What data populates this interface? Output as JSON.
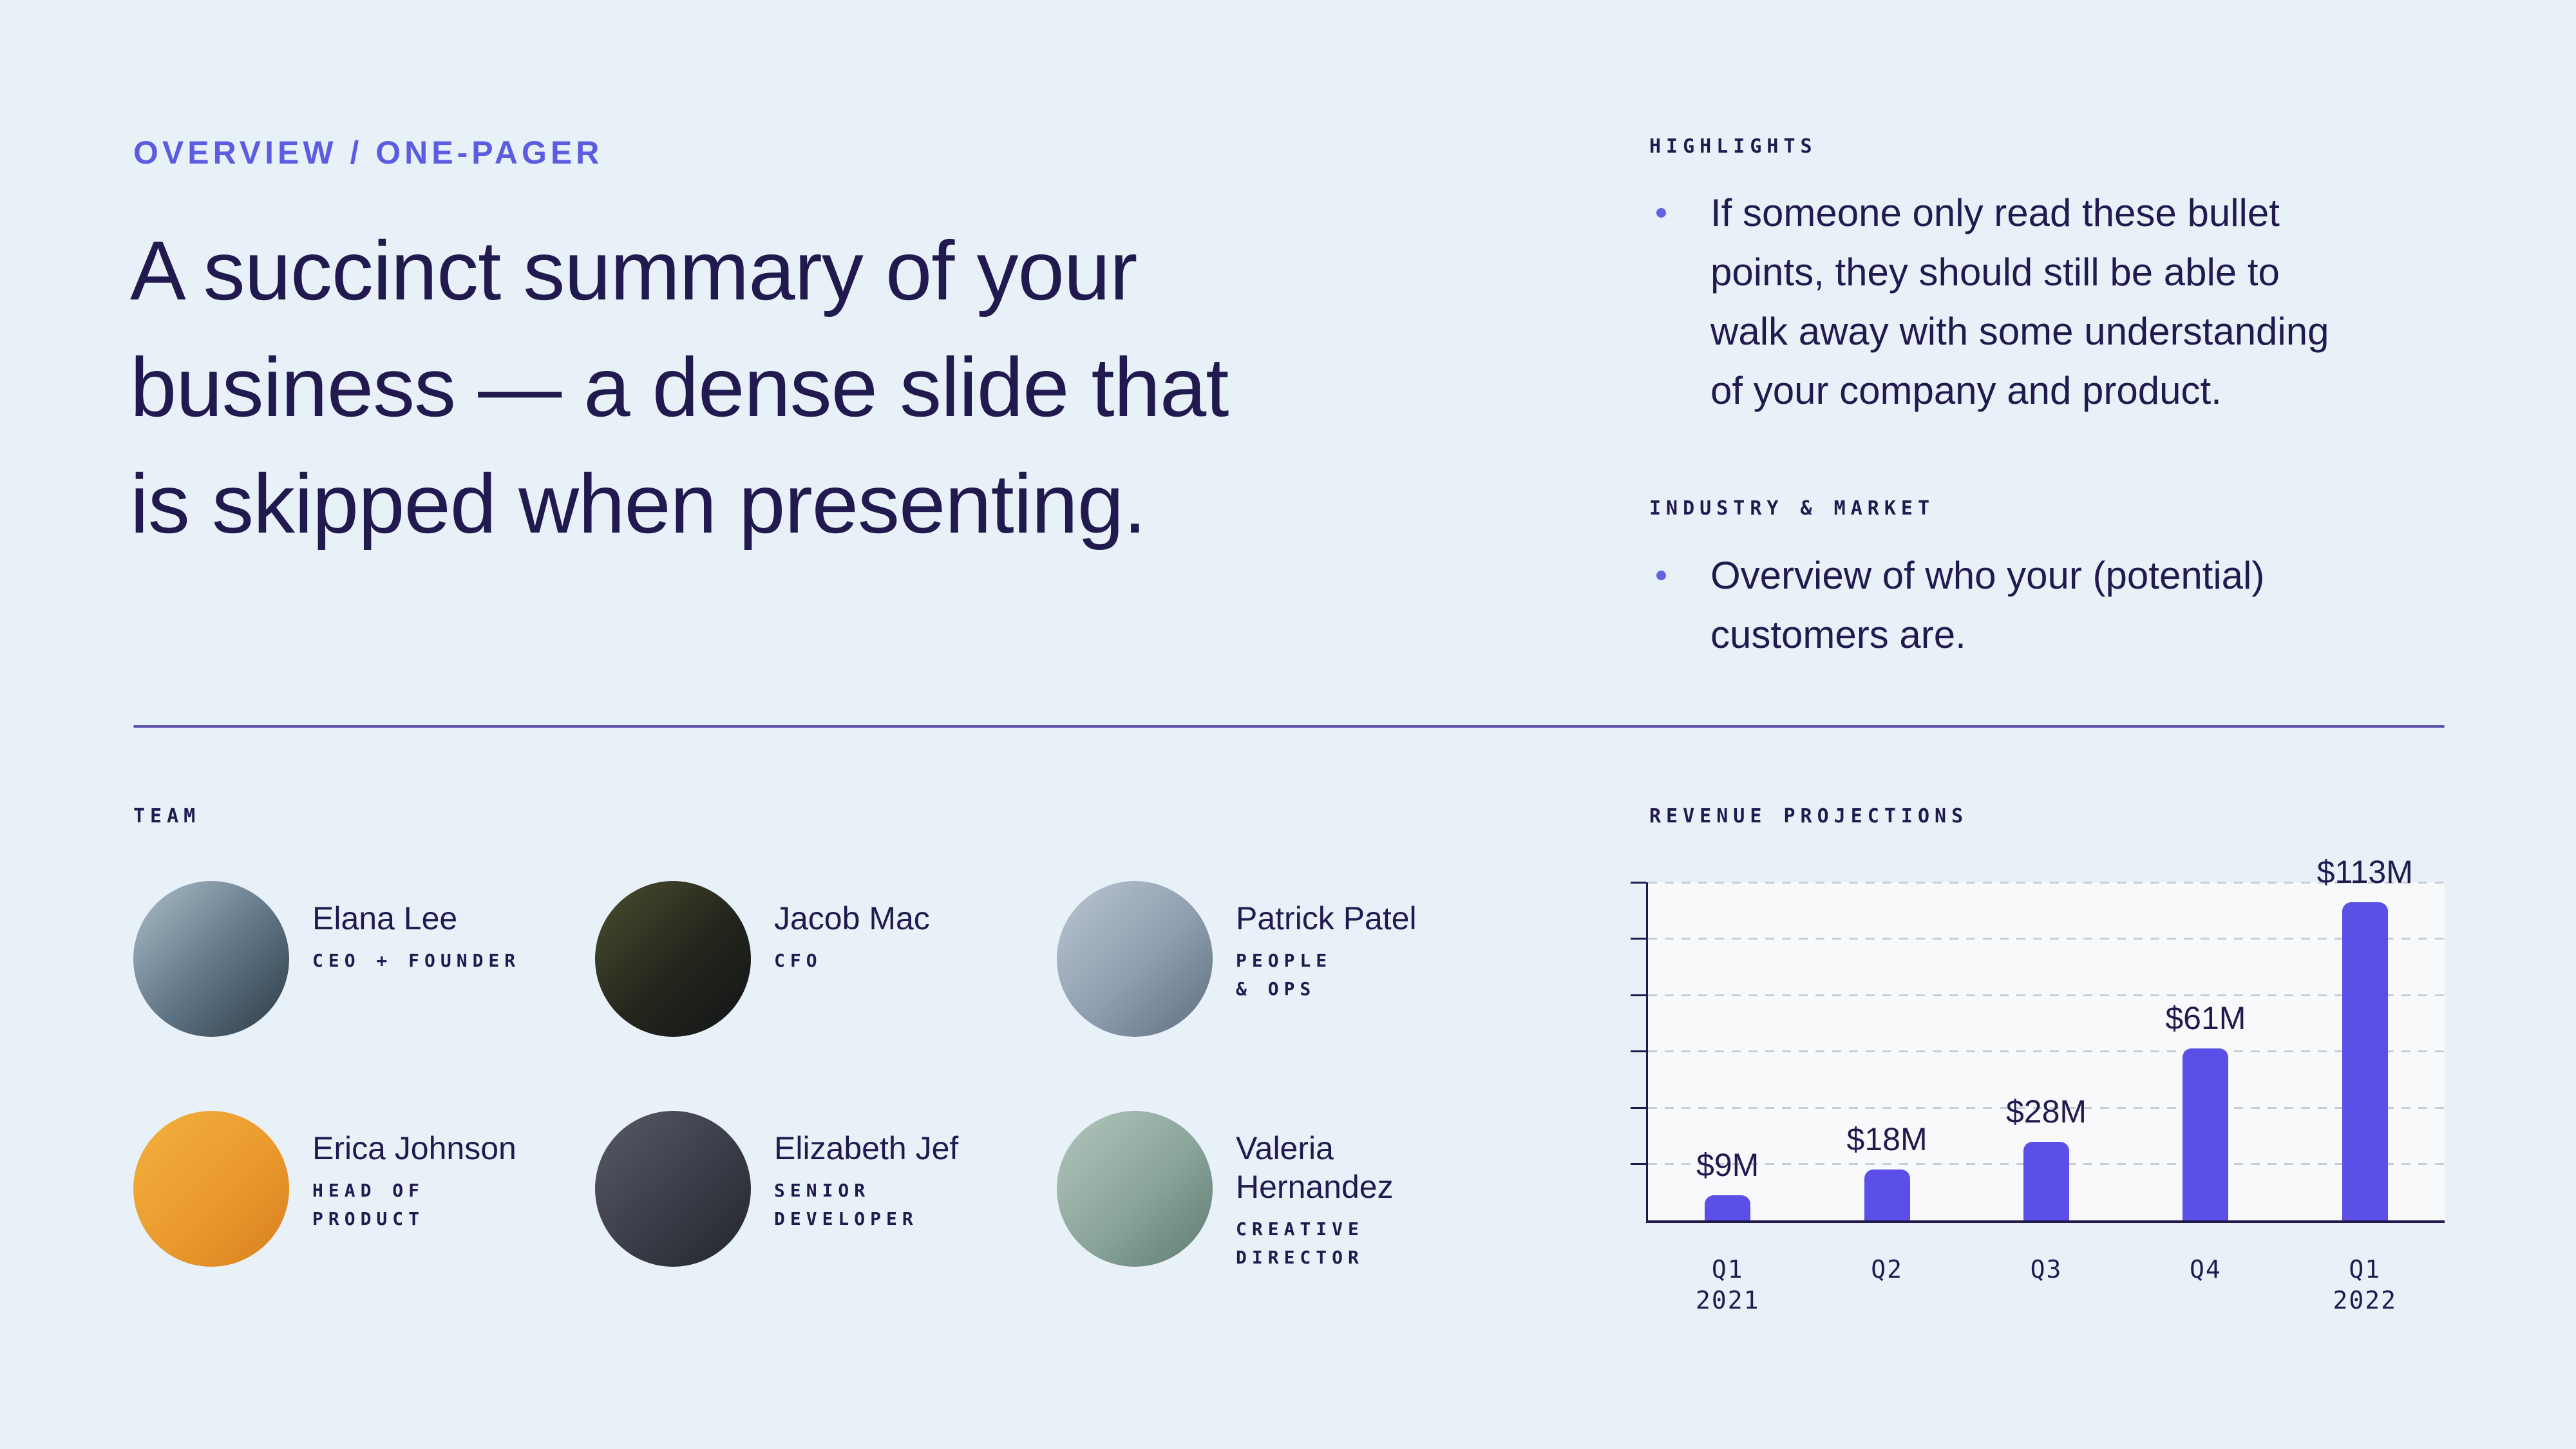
{
  "colors": {
    "background": "#e9f1f8",
    "accent_purple": "#5c5ce0",
    "navy_text": "#201a4f",
    "bar_purple": "#5b4fe8",
    "divider_purple": "#6057a9",
    "plot_background": "#f8f9fa",
    "gridline_gray": "#c9cdd5"
  },
  "eyebrow": "OVERVIEW / ONE-PAGER",
  "headline": "A succinct summary of your\nbusiness — a dense slide that\nis skipped when presenting.",
  "highlights": {
    "label": "HIGHLIGHTS",
    "bullet": "If someone only read these bullet\npoints, they should still be able to\nwalk away with some understanding\nof your company and product."
  },
  "industry": {
    "label": "INDUSTRY & MARKET",
    "bullet": "Overview of who your (potential)\ncustomers are."
  },
  "team": {
    "label": "TEAM",
    "members": [
      {
        "name": "Elana Lee",
        "title": "CEO + FOUNDER",
        "avatar": "woman-portrait-photo",
        "gradient": [
          "#aebfca",
          "#5d7384",
          "#2e3a44"
        ]
      },
      {
        "name": "Jacob Mac",
        "title": "CFO",
        "avatar": "man-glasses-portrait-photo",
        "gradient": [
          "#4a4f2f",
          "#23251c",
          "#131517"
        ]
      },
      {
        "name": "Patrick Patel",
        "title": "PEOPLE\n& OPS",
        "avatar": "man-portrait-photo",
        "gradient": [
          "#bcc7d2",
          "#8d9dae",
          "#5f6e7e"
        ]
      },
      {
        "name": "Erica Johnson",
        "title": "HEAD OF\nPRODUCT",
        "avatar": "laughing-woman-portrait-photo",
        "gradient": [
          "#f2b13f",
          "#eb9a2d",
          "#d77f1e"
        ]
      },
      {
        "name": "Elizabeth Jef",
        "title": "SENIOR\nDEVELOPER",
        "avatar": "blonde-woman-portrait-photo",
        "gradient": [
          "#585a66",
          "#3a3c47",
          "#23252e"
        ]
      },
      {
        "name": "Valeria Hernandez",
        "title": "CREATIVE\nDIRECTOR",
        "avatar": "brunette-woman-portrait-photo",
        "gradient": [
          "#b3c6bc",
          "#89a49a",
          "#5f7b72"
        ]
      }
    ]
  },
  "chart_data": {
    "type": "bar",
    "title": "REVENUE PROJECTIONS",
    "categories": [
      "Q1\n2021",
      "Q2",
      "Q3",
      "Q4",
      "Q1\n2022"
    ],
    "values": [
      9,
      18,
      28,
      61,
      113
    ],
    "value_labels": [
      "$9M",
      "$18M",
      "$28M",
      "$61M",
      "$113M"
    ],
    "unit": "millions USD",
    "ylim": [
      0,
      120
    ],
    "gridline_step": 20,
    "gridline_count": 6,
    "grid_style": "dashed",
    "legend": false,
    "bar_color": "#5b4fe8"
  }
}
